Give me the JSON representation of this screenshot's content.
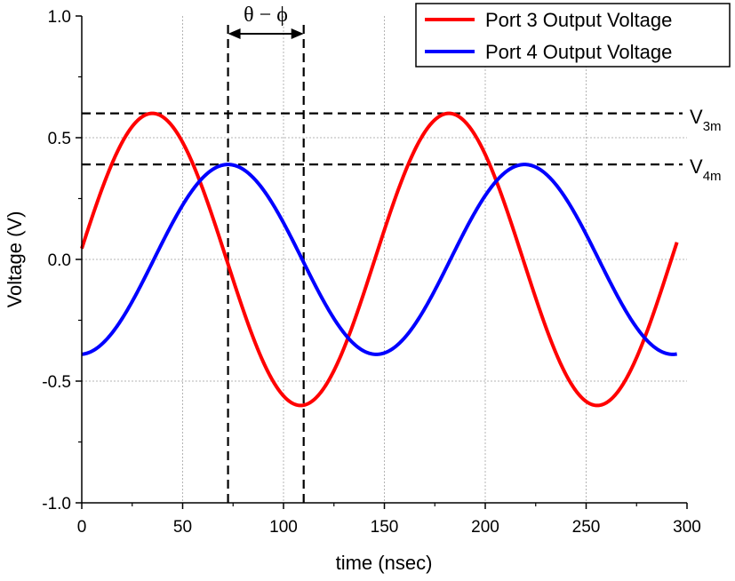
{
  "chart_data": {
    "type": "line",
    "xlabel": "time (nsec)",
    "ylabel": "Voltage (V)",
    "xlim": [
      0,
      300
    ],
    "ylim": [
      -1.0,
      1.0
    ],
    "x_ticks": [
      "0",
      "50",
      "100",
      "150",
      "200",
      "250",
      "300"
    ],
    "y_ticks": [
      "-1.0",
      "-0.5",
      "0.0",
      "0.5",
      "1.0"
    ],
    "grid": true,
    "legend_position": "top-right",
    "series": [
      {
        "name": "Port 3 Output Voltage",
        "color": "#ff0000",
        "amplitude": 0.6,
        "period": 147,
        "peak_at": 35,
        "x_range": [
          0,
          295
        ]
      },
      {
        "name": "Port 4 Output Voltage",
        "color": "#0000ff",
        "amplitude": 0.39,
        "period": 147,
        "peak_at": 72.5,
        "x_range": [
          0,
          295
        ]
      }
    ],
    "annotations": {
      "phase_label": "θ − ϕ",
      "phase_markers_x": [
        72.5,
        110
      ],
      "v3m": {
        "label_main": "V",
        "label_sub": "3m",
        "y": 0.6
      },
      "v4m": {
        "label_main": "V",
        "label_sub": "4m",
        "y": 0.39
      }
    }
  }
}
